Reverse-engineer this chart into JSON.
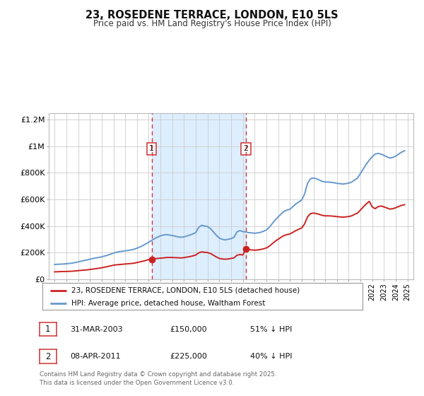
{
  "title": "23, ROSEDENE TERRACE, LONDON, E10 5LS",
  "subtitle": "Price paid vs. HM Land Registry's House Price Index (HPI)",
  "background_color": "#ffffff",
  "plot_bg_color": "#ffffff",
  "grid_color": "#cccccc",
  "shade_color": "#ddeeff",
  "hpi_color": "#6699cc",
  "price_color": "#cc2222",
  "marker_color": "#cc2222",
  "vline_color": "#cc3333",
  "ylim": [
    0,
    1250000
  ],
  "yticks": [
    0,
    200000,
    400000,
    600000,
    800000,
    1000000,
    1200000
  ],
  "ytick_labels": [
    "£0",
    "£200K",
    "£400K",
    "£600K",
    "£800K",
    "£1M",
    "£1.2M"
  ],
  "xlim_start": 1994.5,
  "xlim_end": 2025.5,
  "sale1_x": 2003.25,
  "sale1_y": 150000,
  "sale2_x": 2011.27,
  "sale2_y": 225000,
  "legend_line1": "23, ROSEDENE TERRACE, LONDON, E10 5LS (detached house)",
  "legend_line2": "HPI: Average price, detached house, Waltham Forest",
  "table_row1_num": "1",
  "table_row1_date": "31-MAR-2003",
  "table_row1_price": "£150,000",
  "table_row1_hpi": "51% ↓ HPI",
  "table_row2_num": "2",
  "table_row2_date": "08-APR-2011",
  "table_row2_price": "£225,000",
  "table_row2_hpi": "40% ↓ HPI",
  "footer": "Contains HM Land Registry data © Crown copyright and database right 2025.\nThis data is licensed under the Open Government Licence v3.0.",
  "hpi_data_x": [
    1995.0,
    1995.25,
    1995.5,
    1995.75,
    1996.0,
    1996.25,
    1996.5,
    1996.75,
    1997.0,
    1997.25,
    1997.5,
    1997.75,
    1998.0,
    1998.25,
    1998.5,
    1998.75,
    1999.0,
    1999.25,
    1999.5,
    1999.75,
    2000.0,
    2000.25,
    2000.5,
    2000.75,
    2001.0,
    2001.25,
    2001.5,
    2001.75,
    2002.0,
    2002.25,
    2002.5,
    2002.75,
    2003.0,
    2003.25,
    2003.5,
    2003.75,
    2004.0,
    2004.25,
    2004.5,
    2004.75,
    2005.0,
    2005.25,
    2005.5,
    2005.75,
    2006.0,
    2006.25,
    2006.5,
    2006.75,
    2007.0,
    2007.25,
    2007.5,
    2007.75,
    2008.0,
    2008.25,
    2008.5,
    2008.75,
    2009.0,
    2009.25,
    2009.5,
    2009.75,
    2010.0,
    2010.25,
    2010.5,
    2010.75,
    2011.0,
    2011.25,
    2011.5,
    2011.75,
    2012.0,
    2012.25,
    2012.5,
    2012.75,
    2013.0,
    2013.25,
    2013.5,
    2013.75,
    2014.0,
    2014.25,
    2014.5,
    2014.75,
    2015.0,
    2015.25,
    2015.5,
    2015.75,
    2016.0,
    2016.25,
    2016.5,
    2016.75,
    2017.0,
    2017.25,
    2017.5,
    2017.75,
    2018.0,
    2018.25,
    2018.5,
    2018.75,
    2019.0,
    2019.25,
    2019.5,
    2019.75,
    2020.0,
    2020.25,
    2020.5,
    2020.75,
    2021.0,
    2021.25,
    2021.5,
    2021.75,
    2022.0,
    2022.25,
    2022.5,
    2022.75,
    2023.0,
    2023.25,
    2023.5,
    2023.75,
    2024.0,
    2024.25,
    2024.5,
    2024.75
  ],
  "hpi_data_y": [
    110000,
    112000,
    113000,
    114000,
    116000,
    118000,
    121000,
    125000,
    130000,
    135000,
    140000,
    145000,
    150000,
    155000,
    160000,
    163000,
    168000,
    174000,
    180000,
    188000,
    196000,
    202000,
    207000,
    210000,
    213000,
    216000,
    220000,
    225000,
    233000,
    242000,
    253000,
    265000,
    278000,
    292000,
    305000,
    316000,
    326000,
    332000,
    335000,
    332000,
    328000,
    323000,
    318000,
    315000,
    318000,
    325000,
    332000,
    340000,
    350000,
    390000,
    405000,
    400000,
    395000,
    380000,
    355000,
    330000,
    308000,
    300000,
    295000,
    300000,
    305000,
    315000,
    355000,
    365000,
    358000,
    355000,
    350000,
    348000,
    345000,
    348000,
    352000,
    360000,
    370000,
    390000,
    418000,
    445000,
    468000,
    490000,
    510000,
    520000,
    525000,
    545000,
    565000,
    580000,
    595000,
    640000,
    720000,
    755000,
    760000,
    755000,
    745000,
    735000,
    730000,
    730000,
    728000,
    725000,
    720000,
    718000,
    715000,
    718000,
    722000,
    730000,
    745000,
    760000,
    795000,
    830000,
    865000,
    895000,
    920000,
    940000,
    945000,
    940000,
    930000,
    920000,
    910000,
    915000,
    925000,
    940000,
    955000,
    965000
  ],
  "price_data_x": [
    1995.0,
    1995.25,
    1995.5,
    1995.75,
    1996.0,
    1996.25,
    1996.5,
    1996.75,
    1997.0,
    1997.25,
    1997.5,
    1997.75,
    1998.0,
    1998.25,
    1998.5,
    1998.75,
    1999.0,
    1999.25,
    1999.5,
    1999.75,
    2000.0,
    2000.25,
    2000.5,
    2000.75,
    2001.0,
    2001.25,
    2001.5,
    2001.75,
    2002.0,
    2002.25,
    2002.5,
    2002.75,
    2003.0,
    2003.25,
    2003.5,
    2003.75,
    2004.0,
    2004.25,
    2004.5,
    2004.75,
    2005.0,
    2005.25,
    2005.5,
    2005.75,
    2006.0,
    2006.25,
    2006.5,
    2006.75,
    2007.0,
    2007.25,
    2007.5,
    2007.75,
    2008.0,
    2008.25,
    2008.5,
    2008.75,
    2009.0,
    2009.25,
    2009.5,
    2009.75,
    2010.0,
    2010.25,
    2010.5,
    2010.75,
    2011.0,
    2011.25,
    2011.5,
    2011.75,
    2012.0,
    2012.25,
    2012.5,
    2012.75,
    2013.0,
    2013.25,
    2013.5,
    2013.75,
    2014.0,
    2014.25,
    2014.5,
    2014.75,
    2015.0,
    2015.25,
    2015.5,
    2015.75,
    2016.0,
    2016.25,
    2016.5,
    2016.75,
    2017.0,
    2017.25,
    2017.5,
    2017.75,
    2018.0,
    2018.25,
    2018.5,
    2018.75,
    2019.0,
    2019.25,
    2019.5,
    2019.75,
    2020.0,
    2020.25,
    2020.5,
    2020.75,
    2021.0,
    2021.25,
    2021.5,
    2021.75,
    2022.0,
    2022.25,
    2022.5,
    2022.75,
    2023.0,
    2023.25,
    2023.5,
    2023.75,
    2024.0,
    2024.25,
    2024.5,
    2024.75
  ],
  "price_data_y": [
    55000,
    56000,
    57000,
    57500,
    58000,
    59000,
    60000,
    62000,
    64000,
    66000,
    68000,
    70000,
    73000,
    76000,
    79000,
    82000,
    86000,
    90000,
    95000,
    100000,
    105000,
    108000,
    110000,
    112000,
    114000,
    116000,
    118000,
    120000,
    125000,
    130000,
    135000,
    141000,
    147000,
    150000,
    153000,
    156000,
    158000,
    160000,
    163000,
    163000,
    163000,
    162000,
    161000,
    160000,
    162000,
    166000,
    170000,
    175000,
    182000,
    198000,
    205000,
    202000,
    200000,
    193000,
    180000,
    167000,
    156000,
    152000,
    150000,
    152000,
    156000,
    160000,
    180000,
    185000,
    182000,
    225000,
    222000,
    220000,
    218000,
    220000,
    223000,
    228000,
    235000,
    248000,
    267000,
    285000,
    300000,
    315000,
    328000,
    335000,
    340000,
    352000,
    365000,
    375000,
    385000,
    415000,
    468000,
    493000,
    497000,
    493000,
    487000,
    480000,
    476000,
    476000,
    475000,
    473000,
    470000,
    468000,
    466000,
    468000,
    471000,
    476000,
    487000,
    497000,
    520000,
    544000,
    566000,
    585000,
    543000,
    530000,
    545000,
    550000,
    543000,
    535000,
    527000,
    530000,
    537000,
    546000,
    555000,
    560000
  ]
}
